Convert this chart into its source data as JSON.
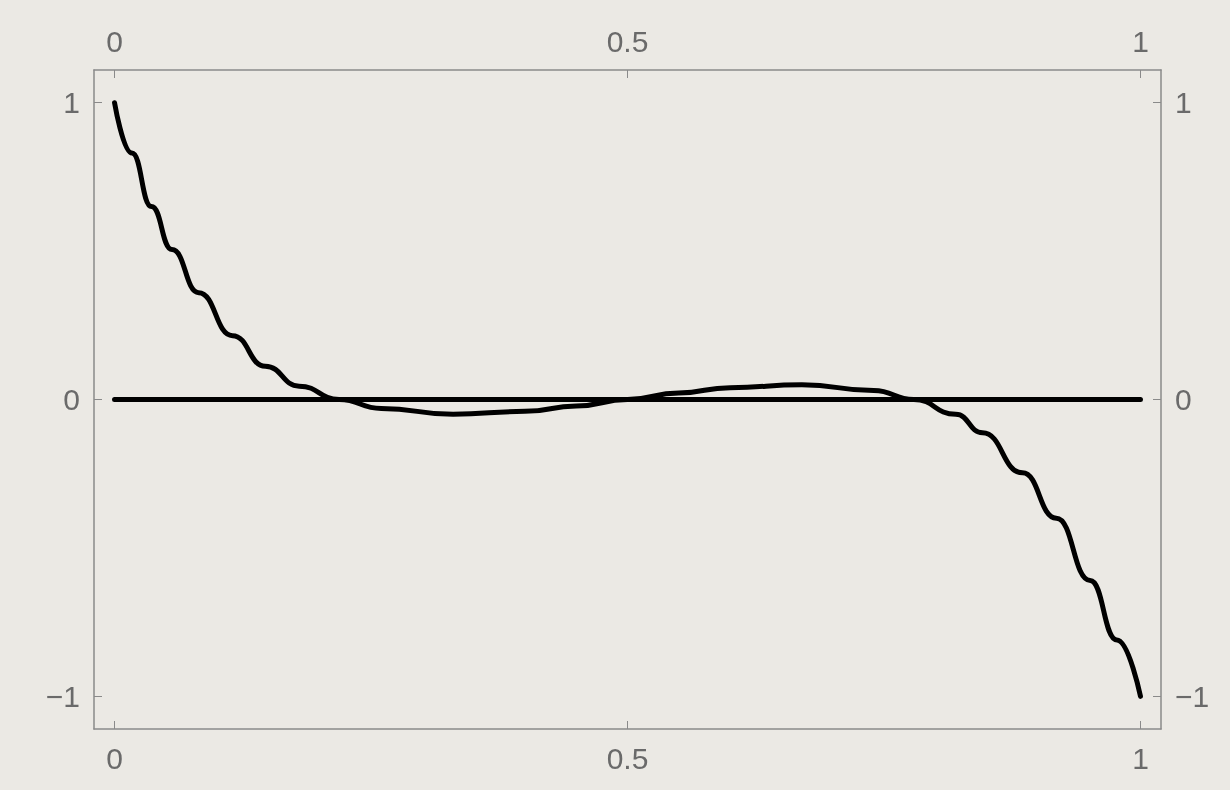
{
  "chart_data": {
    "type": "line",
    "series": [
      {
        "color": "#000000",
        "x": [
          0,
          0.017,
          0.036,
          0.056,
          0.082,
          0.115,
          0.147,
          0.18,
          0.219,
          0.26,
          0.33,
          0.4,
          0.45,
          0.5,
          0.55,
          0.6,
          0.67,
          0.74,
          0.779,
          0.82,
          0.846,
          0.885,
          0.918,
          0.951,
          0.977,
          1
        ],
        "values": [
          1,
          0.83,
          0.65,
          0.505,
          0.36,
          0.215,
          0.112,
          0.045,
          0,
          -0.03,
          -0.05,
          -0.04,
          -0.022,
          0,
          0.022,
          0.04,
          0.05,
          0.03,
          0,
          -0.05,
          -0.112,
          -0.247,
          -0.4,
          -0.61,
          -0.81,
          -1
        ]
      },
      {
        "color": "#000000",
        "x": [
          0,
          1
        ],
        "values": [
          0,
          0
        ]
      }
    ],
    "xlim": [
      -0.02,
      1.02
    ],
    "xticks": [
      0,
      0.5,
      1
    ],
    "x2lim": [
      -0.02,
      1.02
    ],
    "x2ticks": [
      0,
      0.5,
      1
    ],
    "ylim": [
      -1.11,
      1.11
    ],
    "yticks": [
      -1,
      0,
      1
    ],
    "y2lim": [
      -1.11,
      1.11
    ],
    "y2ticks": [
      -1,
      0,
      1
    ],
    "grid": false
  }
}
